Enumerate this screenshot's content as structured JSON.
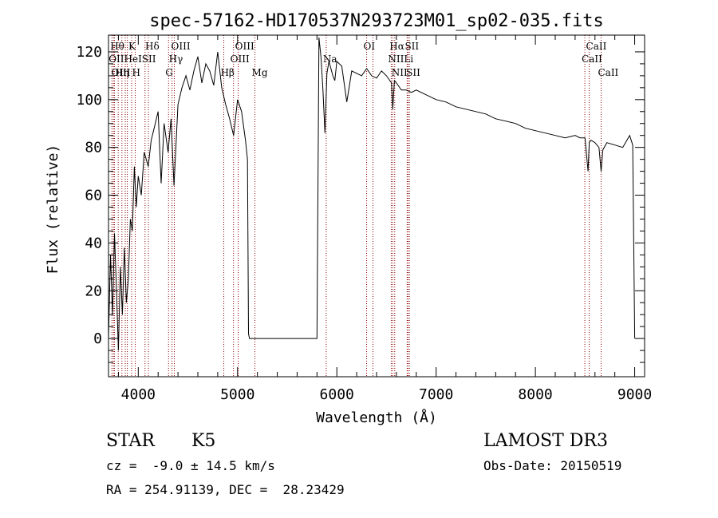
{
  "chart_data": {
    "type": "line",
    "title": "spec-57162-HD170537N293723M01_sp02-035.fits",
    "xlabel": "Wavelength (Å)",
    "ylabel": "Flux (relative)",
    "xlim": [
      3700,
      9100
    ],
    "ylim": [
      -16,
      127
    ],
    "xticks": [
      4000,
      5000,
      6000,
      7000,
      8000,
      9000
    ],
    "yticks": [
      0,
      20,
      40,
      60,
      80,
      100,
      120
    ],
    "line_color": "#000000",
    "marker_color": "#8b0000",
    "series": [
      {
        "x": [
          3700,
          3720,
          3740,
          3760,
          3780,
          3800,
          3820,
          3840,
          3860,
          3880,
          3900,
          3920,
          3940,
          3960,
          3980,
          4000,
          4030,
          4060,
          4100,
          4130,
          4160,
          4200,
          4230,
          4260,
          4300,
          4330,
          4360,
          4400,
          4440,
          4480,
          4520,
          4560,
          4600,
          4640,
          4680,
          4720,
          4760,
          4800,
          4840,
          4880,
          4920,
          4960,
          5000,
          5040,
          5080,
          5100,
          5110,
          5120,
          5150,
          5200,
          5300,
          5400,
          5500,
          5600,
          5700,
          5800,
          5820,
          5840,
          5860,
          5880,
          5900,
          5920,
          5940,
          5960,
          5980,
          6000,
          6050,
          6100,
          6150,
          6200,
          6250,
          6300,
          6350,
          6400,
          6450,
          6500,
          6550,
          6563,
          6580,
          6600,
          6650,
          6700,
          6750,
          6800,
          6900,
          7000,
          7100,
          7200,
          7300,
          7400,
          7500,
          7600,
          7700,
          7800,
          7900,
          8000,
          8100,
          8200,
          8300,
          8400,
          8450,
          8500,
          8530,
          8542,
          8560,
          8600,
          8640,
          8662,
          8680,
          8720,
          8800,
          8880,
          8950,
          8980,
          9000
        ],
        "y": [
          0,
          35,
          10,
          44,
          20,
          -5,
          30,
          10,
          38,
          15,
          25,
          50,
          45,
          72,
          55,
          68,
          60,
          78,
          72,
          83,
          88,
          95,
          65,
          90,
          78,
          92,
          64,
          98,
          105,
          110,
          104,
          112,
          118,
          107,
          115,
          112,
          106,
          120,
          105,
          98,
          92,
          85,
          100,
          95,
          83,
          75,
          2,
          0,
          0,
          0,
          0,
          0,
          0,
          0,
          0,
          0,
          126,
          118,
          104,
          86,
          111,
          116,
          113,
          110,
          108,
          116,
          114,
          99,
          112,
          111,
          110,
          113,
          110,
          109,
          112,
          110,
          107,
          96,
          108,
          107,
          104,
          104,
          103,
          104,
          102,
          100,
          99,
          97,
          96,
          95,
          94,
          92,
          91,
          90,
          88,
          87,
          86,
          85,
          84,
          85,
          84,
          84,
          70,
          82,
          83,
          82,
          80,
          70,
          79,
          82,
          81,
          80,
          85,
          81,
          0
        ]
      }
    ],
    "lines": [
      {
        "x": 3734,
        "label": "OII",
        "row": 1
      },
      {
        "x": 3750,
        "label": "Hθ",
        "row": 0
      },
      {
        "x": 3760,
        "label": "OIII",
        "row": 2
      },
      {
        "x": 3798,
        "label": "Hη",
        "row": 2
      },
      {
        "x": 3835,
        "label": "",
        "row": 0
      },
      {
        "x": 3869,
        "label": "",
        "row": 1
      },
      {
        "x": 3889,
        "label": "HeI",
        "row": 1
      },
      {
        "x": 3933,
        "label": "K",
        "row": 0
      },
      {
        "x": 3969,
        "label": "H",
        "row": 2
      },
      {
        "x": 4068,
        "label": "SII",
        "row": 1
      },
      {
        "x": 4102,
        "label": "Hδ",
        "row": 0
      },
      {
        "x": 4305,
        "label": "G",
        "row": 2
      },
      {
        "x": 4340,
        "label": "Hγ",
        "row": 1
      },
      {
        "x": 4363,
        "label": "OIII",
        "row": 0
      },
      {
        "x": 4861,
        "label": "Hβ",
        "row": 2
      },
      {
        "x": 4959,
        "label": "OIII",
        "row": 1
      },
      {
        "x": 5007,
        "label": "OIII",
        "row": 0
      },
      {
        "x": 5175,
        "label": "Mg",
        "row": 2
      },
      {
        "x": 5893,
        "label": "Na",
        "row": 1
      },
      {
        "x": 6300,
        "label": "OI",
        "row": 0
      },
      {
        "x": 6364,
        "label": "",
        "row": 1
      },
      {
        "x": 6548,
        "label": "NII",
        "row": 1
      },
      {
        "x": 6563,
        "label": "Hα",
        "row": 0
      },
      {
        "x": 6583,
        "label": "NII",
        "row": 2
      },
      {
        "x": 6708,
        "label": "Li",
        "row": 1
      },
      {
        "x": 6717,
        "label": "SII",
        "row": 0
      },
      {
        "x": 6731,
        "label": "SII",
        "row": 2
      },
      {
        "x": 8498,
        "label": "CaII",
        "row": 1
      },
      {
        "x": 8542,
        "label": "CaII",
        "row": 0
      },
      {
        "x": 8662,
        "label": "CaII",
        "row": 2
      }
    ]
  },
  "info": {
    "object_class": "STAR",
    "subclass": "K5",
    "survey": "LAMOST DR3",
    "redshift": "cz =  -9.0 ± 14.5 km/s",
    "obs_date": "Obs-Date: 20150519",
    "coords": "RA = 254.91139, DEC =  28.23429"
  }
}
